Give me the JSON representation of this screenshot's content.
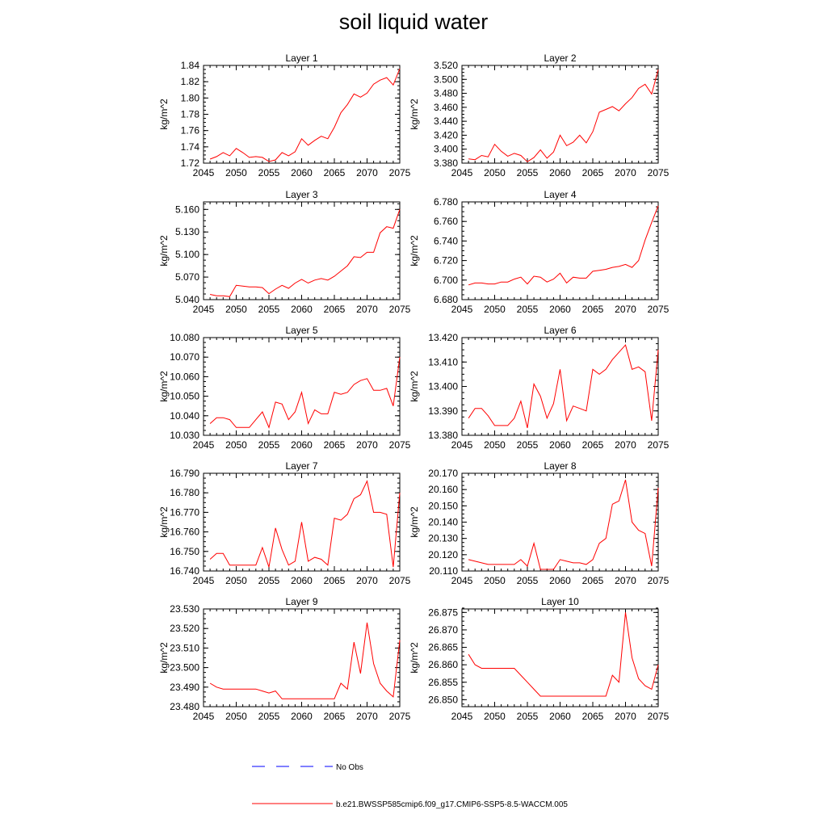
{
  "title": "soil liquid water",
  "colors": {
    "model": "#ff0000",
    "obs": "#0000ff"
  },
  "legend": {
    "obs_label": "No Obs",
    "model_label": "b.e21.BWSSP585cmip6.f09_g17.CMIP6-SSP5-8.5-WACCM.005"
  },
  "chart_data": [
    {
      "type": "line",
      "title": "Layer 1",
      "ylabel": "kg/m^2",
      "xlim": [
        2045,
        2075
      ],
      "ylim": [
        1.72,
        1.84
      ],
      "xticks": [
        "2045",
        "2050",
        "2055",
        "2060",
        "2065",
        "2070",
        "2075"
      ],
      "yticks": [
        "1.72",
        "1.74",
        "1.76",
        "1.78",
        "1.80",
        "1.82",
        "1.84"
      ],
      "series": [
        {
          "x": [
            2046,
            2047,
            2048,
            2049,
            2050,
            2051,
            2052,
            2053,
            2054,
            2055,
            2056,
            2057,
            2058,
            2059,
            2060,
            2061,
            2062,
            2063,
            2064,
            2065,
            2066,
            2067,
            2068,
            2069,
            2070,
            2071,
            2072,
            2073,
            2074,
            2075
          ],
          "values": [
            1.725,
            1.728,
            1.733,
            1.729,
            1.738,
            1.733,
            1.727,
            1.728,
            1.727,
            1.722,
            1.724,
            1.733,
            1.729,
            1.734,
            1.75,
            1.742,
            1.748,
            1.753,
            1.75,
            1.764,
            1.782,
            1.792,
            1.805,
            1.801,
            1.806,
            1.817,
            1.822,
            1.825,
            1.816,
            1.836
          ]
        }
      ]
    },
    {
      "type": "line",
      "title": "Layer 2",
      "ylabel": "kg/m^2",
      "xlim": [
        2045,
        2075
      ],
      "ylim": [
        3.38,
        3.52
      ],
      "xticks": [
        "2045",
        "2050",
        "2055",
        "2060",
        "2065",
        "2070",
        "2075"
      ],
      "yticks": [
        "3.380",
        "3.400",
        "3.420",
        "3.440",
        "3.460",
        "3.480",
        "3.500",
        "3.520"
      ],
      "series": [
        {
          "x": [
            2046,
            2047,
            2048,
            2049,
            2050,
            2051,
            2052,
            2053,
            2054,
            2055,
            2056,
            2057,
            2058,
            2059,
            2060,
            2061,
            2062,
            2063,
            2064,
            2065,
            2066,
            2067,
            2068,
            2069,
            2070,
            2071,
            2072,
            2073,
            2074,
            2075
          ],
          "values": [
            3.386,
            3.385,
            3.391,
            3.389,
            3.407,
            3.397,
            3.39,
            3.394,
            3.391,
            3.382,
            3.388,
            3.399,
            3.387,
            3.396,
            3.42,
            3.405,
            3.41,
            3.42,
            3.409,
            3.425,
            3.453,
            3.457,
            3.461,
            3.455,
            3.465,
            3.474,
            3.487,
            3.493,
            3.479,
            3.514
          ]
        }
      ]
    },
    {
      "type": "line",
      "title": "Layer 3",
      "ylabel": "kg/m^2",
      "xlim": [
        2045,
        2075
      ],
      "ylim": [
        5.04,
        5.17
      ],
      "xticks": [
        "2045",
        "2050",
        "2055",
        "2060",
        "2065",
        "2070",
        "2075"
      ],
      "yticks": [
        "5.040",
        "5.070",
        "5.100",
        "5.130",
        "5.160"
      ],
      "series": [
        {
          "x": [
            2046,
            2047,
            2048,
            2049,
            2050,
            2051,
            2052,
            2053,
            2054,
            2055,
            2056,
            2057,
            2058,
            2059,
            2060,
            2061,
            2062,
            2063,
            2064,
            2065,
            2066,
            2067,
            2068,
            2069,
            2070,
            2071,
            2072,
            2073,
            2074,
            2075
          ],
          "values": [
            5.047,
            5.045,
            5.045,
            5.044,
            5.059,
            5.058,
            5.057,
            5.057,
            5.056,
            5.048,
            5.054,
            5.059,
            5.055,
            5.062,
            5.067,
            5.062,
            5.066,
            5.068,
            5.066,
            5.071,
            5.078,
            5.085,
            5.097,
            5.096,
            5.103,
            5.103,
            5.129,
            5.137,
            5.135,
            5.16
          ]
        }
      ]
    },
    {
      "type": "line",
      "title": "Layer 4",
      "ylabel": "kg/m^2",
      "xlim": [
        2045,
        2075
      ],
      "ylim": [
        6.68,
        6.78
      ],
      "xticks": [
        "2045",
        "2050",
        "2055",
        "2060",
        "2065",
        "2070",
        "2075"
      ],
      "yticks": [
        "6.680",
        "6.700",
        "6.720",
        "6.740",
        "6.760",
        "6.780"
      ],
      "series": [
        {
          "x": [
            2046,
            2047,
            2048,
            2049,
            2050,
            2051,
            2052,
            2053,
            2054,
            2055,
            2056,
            2057,
            2058,
            2059,
            2060,
            2061,
            2062,
            2063,
            2064,
            2065,
            2066,
            2067,
            2068,
            2069,
            2070,
            2071,
            2072,
            2073,
            2074,
            2075
          ],
          "values": [
            6.695,
            6.697,
            6.697,
            6.696,
            6.696,
            6.698,
            6.698,
            6.701,
            6.703,
            6.696,
            6.704,
            6.703,
            6.698,
            6.701,
            6.707,
            6.697,
            6.703,
            6.702,
            6.702,
            6.709,
            6.71,
            6.711,
            6.713,
            6.714,
            6.716,
            6.713,
            6.72,
            6.741,
            6.759,
            6.776
          ]
        }
      ]
    },
    {
      "type": "line",
      "title": "Layer 5",
      "ylabel": "kg/m^2",
      "xlim": [
        2045,
        2075
      ],
      "ylim": [
        10.03,
        10.08
      ],
      "xticks": [
        "2045",
        "2050",
        "2055",
        "2060",
        "2065",
        "2070",
        "2075"
      ],
      "yticks": [
        "10.030",
        "10.040",
        "10.050",
        "10.060",
        "10.070",
        "10.080"
      ],
      "series": [
        {
          "x": [
            2046,
            2047,
            2048,
            2049,
            2050,
            2051,
            2052,
            2053,
            2054,
            2055,
            2056,
            2057,
            2058,
            2059,
            2060,
            2061,
            2062,
            2063,
            2064,
            2065,
            2066,
            2067,
            2068,
            2069,
            2070,
            2071,
            2072,
            2073,
            2074,
            2075
          ],
          "values": [
            10.036,
            10.039,
            10.039,
            10.038,
            10.034,
            10.034,
            10.034,
            10.038,
            10.042,
            10.034,
            10.047,
            10.046,
            10.038,
            10.042,
            10.052,
            10.036,
            10.043,
            10.041,
            10.041,
            10.052,
            10.051,
            10.052,
            10.056,
            10.058,
            10.059,
            10.053,
            10.053,
            10.054,
            10.045,
            10.07
          ]
        }
      ]
    },
    {
      "type": "line",
      "title": "Layer 6",
      "ylabel": "kg/m^2",
      "xlim": [
        2045,
        2075
      ],
      "ylim": [
        13.38,
        13.42
      ],
      "xticks": [
        "2045",
        "2050",
        "2055",
        "2060",
        "2065",
        "2070",
        "2075"
      ],
      "yticks": [
        "13.380",
        "13.390",
        "13.400",
        "13.410",
        "13.420"
      ],
      "series": [
        {
          "x": [
            2046,
            2047,
            2048,
            2049,
            2050,
            2051,
            2052,
            2053,
            2054,
            2055,
            2056,
            2057,
            2058,
            2059,
            2060,
            2061,
            2062,
            2063,
            2064,
            2065,
            2066,
            2067,
            2068,
            2069,
            2070,
            2071,
            2072,
            2073,
            2074,
            2075
          ],
          "values": [
            13.387,
            13.391,
            13.391,
            13.388,
            13.384,
            13.384,
            13.384,
            13.387,
            13.394,
            13.383,
            13.401,
            13.396,
            13.387,
            13.393,
            13.407,
            13.386,
            13.392,
            13.391,
            13.39,
            13.407,
            13.405,
            13.407,
            13.411,
            13.414,
            13.417,
            13.407,
            13.408,
            13.406,
            13.386,
            13.415
          ]
        }
      ]
    },
    {
      "type": "line",
      "title": "Layer 7",
      "ylabel": "kg/m^2",
      "xlim": [
        2045,
        2075
      ],
      "ylim": [
        16.74,
        16.79
      ],
      "xticks": [
        "2045",
        "2050",
        "2055",
        "2060",
        "2065",
        "2070",
        "2075"
      ],
      "yticks": [
        "16.740",
        "16.750",
        "16.760",
        "16.770",
        "16.780",
        "16.790"
      ],
      "series": [
        {
          "x": [
            2046,
            2047,
            2048,
            2049,
            2050,
            2051,
            2052,
            2053,
            2054,
            2055,
            2056,
            2057,
            2058,
            2059,
            2060,
            2061,
            2062,
            2063,
            2064,
            2065,
            2066,
            2067,
            2068,
            2069,
            2070,
            2071,
            2072,
            2073,
            2074,
            2075
          ],
          "values": [
            16.746,
            16.749,
            16.749,
            16.743,
            16.743,
            16.743,
            16.743,
            16.743,
            16.752,
            16.742,
            16.762,
            16.751,
            16.743,
            16.745,
            16.765,
            16.745,
            16.747,
            16.746,
            16.743,
            16.767,
            16.766,
            16.769,
            16.777,
            16.779,
            16.786,
            16.77,
            16.77,
            16.769,
            16.742,
            16.78
          ]
        }
      ]
    },
    {
      "type": "line",
      "title": "Layer 8",
      "ylabel": "kg/m^2",
      "xlim": [
        2045,
        2075
      ],
      "ylim": [
        20.11,
        20.17
      ],
      "xticks": [
        "2045",
        "2050",
        "2055",
        "2060",
        "2065",
        "2070",
        "2075"
      ],
      "yticks": [
        "20.110",
        "20.120",
        "20.130",
        "20.140",
        "20.150",
        "20.160",
        "20.170"
      ],
      "series": [
        {
          "x": [
            2046,
            2047,
            2048,
            2049,
            2050,
            2051,
            2052,
            2053,
            2054,
            2055,
            2056,
            2057,
            2058,
            2059,
            2060,
            2061,
            2062,
            2063,
            2064,
            2065,
            2066,
            2067,
            2068,
            2069,
            2070,
            2071,
            2072,
            2073,
            2074,
            2075
          ],
          "values": [
            20.117,
            20.116,
            20.115,
            20.114,
            20.114,
            20.114,
            20.114,
            20.114,
            20.117,
            20.113,
            20.127,
            20.111,
            20.111,
            20.111,
            20.117,
            20.116,
            20.115,
            20.115,
            20.114,
            20.117,
            20.127,
            20.13,
            20.151,
            20.153,
            20.166,
            20.14,
            20.135,
            20.133,
            20.113,
            20.161
          ]
        }
      ]
    },
    {
      "type": "line",
      "title": "Layer 9",
      "ylabel": "kg/m^2",
      "xlim": [
        2045,
        2075
      ],
      "ylim": [
        23.48,
        23.53
      ],
      "xticks": [
        "2045",
        "2050",
        "2055",
        "2060",
        "2065",
        "2070",
        "2075"
      ],
      "yticks": [
        "23.480",
        "23.490",
        "23.500",
        "23.510",
        "23.520",
        "23.530"
      ],
      "series": [
        {
          "x": [
            2046,
            2047,
            2048,
            2049,
            2050,
            2051,
            2052,
            2053,
            2054,
            2055,
            2056,
            2057,
            2058,
            2059,
            2060,
            2061,
            2062,
            2063,
            2064,
            2065,
            2066,
            2067,
            2068,
            2069,
            2070,
            2071,
            2072,
            2073,
            2074,
            2075
          ],
          "values": [
            23.492,
            23.49,
            23.489,
            23.489,
            23.489,
            23.489,
            23.489,
            23.489,
            23.488,
            23.487,
            23.488,
            23.484,
            23.484,
            23.484,
            23.484,
            23.484,
            23.484,
            23.484,
            23.484,
            23.484,
            23.492,
            23.489,
            23.513,
            23.497,
            23.523,
            23.502,
            23.492,
            23.488,
            23.485,
            23.514
          ]
        }
      ]
    },
    {
      "type": "line",
      "title": "Layer 10",
      "ylabel": "kg/m^2",
      "xlim": [
        2045,
        2075
      ],
      "ylim": [
        26.848,
        26.876
      ],
      "xticks": [
        "2045",
        "2050",
        "2055",
        "2060",
        "2065",
        "2070",
        "2075"
      ],
      "yticks": [
        "26.850",
        "26.855",
        "26.860",
        "26.865",
        "26.870",
        "26.875"
      ],
      "series": [
        {
          "x": [
            2046,
            2047,
            2048,
            2049,
            2050,
            2051,
            2052,
            2053,
            2054,
            2055,
            2056,
            2057,
            2058,
            2059,
            2060,
            2061,
            2062,
            2063,
            2064,
            2065,
            2066,
            2067,
            2068,
            2069,
            2070,
            2071,
            2072,
            2073,
            2074,
            2075
          ],
          "values": [
            26.863,
            26.86,
            26.859,
            26.859,
            26.859,
            26.859,
            26.859,
            26.859,
            26.857,
            26.855,
            26.853,
            26.851,
            26.851,
            26.851,
            26.851,
            26.851,
            26.851,
            26.851,
            26.851,
            26.851,
            26.851,
            26.851,
            26.857,
            26.855,
            26.875,
            26.862,
            26.856,
            26.854,
            26.853,
            26.86
          ]
        }
      ]
    }
  ]
}
